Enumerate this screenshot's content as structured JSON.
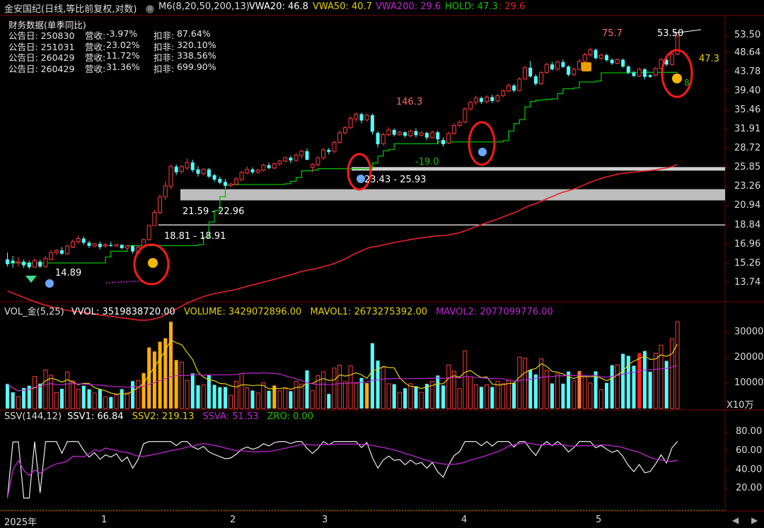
{
  "header": {
    "stock_title": "金安国纪(日线,等比前复权,对数)",
    "indicator_name": "M6(8,20,50,200,13)",
    "vwa20": "VWA20: 46.8",
    "vwa50": "VWA50: 40.7",
    "vwa200": "VWA200: 29.6",
    "hold_a": "HOLD: 47.3",
    "hold_b": ": 29.6"
  },
  "financials": {
    "title": "财务数据(单季同比)",
    "rows": [
      {
        "date": "公告日: 250830",
        "rev_label": "营收:",
        "rev": "-3.97%",
        "np_label": "扣非:",
        "np": "87.64%"
      },
      {
        "date": "公告日: 251031",
        "rev_label": "营收:",
        "rev": "23.02%",
        "np_label": "扣非:",
        "np": "320.10%"
      },
      {
        "date": "公告日: 260429",
        "rev_label": "营收:",
        "rev": "11.72%",
        "np_label": "扣非:",
        "np": "338.56%"
      },
      {
        "date": "公告日: 260429",
        "rev_label": "营收:",
        "rev": "31.36%",
        "np_label": "扣非:",
        "np": "699.90%"
      }
    ]
  },
  "price_axis": [
    "53.50",
    "48.64",
    "43.78",
    "39.40",
    "35.46",
    "31.91",
    "28.72",
    "25.85",
    "23.26",
    "20.94",
    "18.84",
    "16.96",
    "15.26",
    "13.74"
  ],
  "annotations": {
    "p1489": "14.89",
    "range1": "18.81 - 18.91",
    "range2": "21.59 - 22.96",
    "range3": "23.43 - 25.93",
    "p1463": "146.3",
    "p190": "-19.0",
    "p757": "75.7",
    "p5350": "53.50",
    "p473": "47.3",
    "p8": "8"
  },
  "volume": {
    "header_name": "VOL_金(5,25)",
    "vvol": "VVOL: 3519838720.00",
    "volume": "VOLUME: 3429072896.00",
    "mavol1": "MAVOL1: 2673275392.00",
    "mavol2": "MAVOL2: 2077099776.00",
    "axis": [
      "30000",
      "20000",
      "10000"
    ],
    "unit": "X10万"
  },
  "ssv": {
    "header_name": "SSV(144,12)",
    "ssv1": "SSV1: 66.84",
    "ssv2": "SSV2: 219.13",
    "ssva": "SSVA: 51.53",
    "zro": "ZRO: 0.00",
    "axis": [
      "80.00",
      "60.00",
      "40.00",
      "20.00"
    ]
  },
  "time_axis": [
    "2025年",
    "1",
    "2",
    "3",
    "4",
    "5"
  ],
  "colors": {
    "up": "#ff3b3b",
    "down": "#54ffff",
    "ma_green": "#00c000",
    "ma_red": "#e8202a",
    "vwa50": "#e6d200",
    "vwa200": "#c026d3",
    "hold": "#21c000",
    "grid": "#7a0000"
  },
  "chart_data": {
    "type": "candlestick",
    "scale": "log",
    "ylim": [
      13.2,
      55.0
    ],
    "candles": [
      [
        0,
        15.6,
        16.2,
        15.2,
        15.0
      ],
      [
        0,
        15.5,
        15.9,
        15.3,
        14.9
      ],
      [
        1,
        15.3,
        15.8,
        15.4,
        15.0
      ],
      [
        0,
        15.4,
        15.6,
        15.1,
        14.9
      ],
      [
        0,
        15.3,
        15.5,
        14.95,
        14.8
      ],
      [
        1,
        14.95,
        15.7,
        15.5,
        14.9
      ],
      [
        0,
        15.4,
        15.6,
        15.0,
        14.9
      ],
      [
        1,
        15.0,
        15.9,
        15.7,
        14.9
      ],
      [
        1,
        15.6,
        16.4,
        16.2,
        15.5
      ],
      [
        1,
        16.2,
        16.5,
        16.4,
        16.0
      ],
      [
        0,
        16.4,
        16.7,
        16.1,
        16.0
      ],
      [
        1,
        16.1,
        16.9,
        16.8,
        16.0
      ],
      [
        1,
        16.7,
        17.4,
        17.2,
        16.6
      ],
      [
        1,
        17.2,
        17.8,
        17.5,
        17.0
      ],
      [
        0,
        17.5,
        17.7,
        17.1,
        16.9
      ],
      [
        0,
        17.1,
        17.3,
        16.8,
        16.6
      ],
      [
        1,
        16.8,
        17.1,
        17.0,
        16.7
      ],
      [
        0,
        17.0,
        17.2,
        16.7,
        16.5
      ],
      [
        1,
        16.8,
        17.1,
        16.9,
        16.6
      ],
      [
        0,
        16.9,
        17.2,
        16.8,
        16.7
      ],
      [
        1,
        16.8,
        17.0,
        16.95,
        16.7
      ],
      [
        0,
        16.9,
        17.0,
        16.6,
        16.5
      ],
      [
        1,
        16.6,
        16.9,
        16.8,
        16.5
      ],
      [
        0,
        16.8,
        16.9,
        16.3,
        16.1
      ],
      [
        1,
        16.2,
        16.8,
        16.7,
        16.0
      ],
      [
        1,
        16.7,
        17.5,
        17.4,
        16.6
      ],
      [
        1,
        17.4,
        18.9,
        18.8,
        17.3
      ],
      [
        1,
        18.8,
        20.5,
        20.2,
        18.8
      ],
      [
        1,
        20.2,
        22.3,
        22.0,
        20.0
      ],
      [
        1,
        22.0,
        24.0,
        23.4,
        21.6
      ],
      [
        1,
        23.3,
        26.3,
        26.0,
        23.0
      ],
      [
        0,
        26.0,
        26.3,
        25.2,
        24.8
      ],
      [
        1,
        25.3,
        26.3,
        26.0,
        25.0
      ],
      [
        1,
        25.8,
        27.2,
        26.6,
        25.5
      ],
      [
        0,
        26.6,
        27.0,
        25.5,
        25.2
      ],
      [
        0,
        25.6,
        26.1,
        25.0,
        24.6
      ],
      [
        1,
        25.0,
        25.8,
        25.6,
        24.8
      ],
      [
        0,
        25.6,
        25.8,
        24.6,
        24.4
      ],
      [
        0,
        24.8,
        25.0,
        24.2,
        23.9
      ],
      [
        0,
        24.3,
        24.6,
        23.8,
        23.6
      ],
      [
        0,
        23.9,
        24.3,
        23.4,
        23.1
      ],
      [
        1,
        23.4,
        23.8,
        23.6,
        23.2
      ],
      [
        1,
        23.6,
        24.5,
        24.3,
        23.5
      ],
      [
        1,
        24.2,
        25.4,
        25.2,
        24.0
      ],
      [
        1,
        25.1,
        26.0,
        25.6,
        24.9
      ],
      [
        0,
        25.6,
        25.9,
        25.2,
        24.9
      ],
      [
        1,
        25.2,
        25.7,
        25.5,
        25.0
      ],
      [
        1,
        25.5,
        26.4,
        26.2,
        25.3
      ],
      [
        0,
        26.2,
        26.6,
        25.8,
        25.6
      ],
      [
        1,
        25.8,
        26.6,
        26.4,
        25.6
      ],
      [
        1,
        26.4,
        27.0,
        26.8,
        26.1
      ],
      [
        1,
        26.8,
        27.5,
        27.3,
        26.5
      ],
      [
        0,
        27.3,
        27.6,
        26.9,
        26.5
      ],
      [
        1,
        26.9,
        28.0,
        27.7,
        26.7
      ],
      [
        1,
        27.6,
        28.5,
        28.3,
        27.2
      ],
      [
        0,
        28.3,
        28.7,
        27.0,
        26.9
      ],
      [
        1,
        25.9,
        26.5,
        26.3,
        25.2
      ],
      [
        1,
        26.3,
        27.5,
        27.3,
        26.0
      ],
      [
        1,
        27.3,
        28.8,
        28.5,
        27.0
      ],
      [
        0,
        28.5,
        28.8,
        28.2,
        27.8
      ],
      [
        1,
        28.3,
        30.0,
        29.7,
        28.0
      ],
      [
        1,
        29.7,
        31.8,
        31.3,
        29.5
      ],
      [
        1,
        31.3,
        32.5,
        32.2,
        31.0
      ],
      [
        1,
        32.2,
        34.3,
        33.9,
        32.0
      ],
      [
        1,
        33.8,
        35.0,
        34.7,
        33.2
      ],
      [
        0,
        34.7,
        35.0,
        33.5,
        33.0
      ],
      [
        1,
        33.6,
        34.8,
        34.5,
        33.3
      ],
      [
        0,
        34.5,
        34.8,
        31.5,
        31.0
      ],
      [
        0,
        31.3,
        31.6,
        29.4,
        28.9
      ],
      [
        1,
        29.5,
        31.3,
        31.0,
        29.2
      ],
      [
        1,
        31.0,
        32.3,
        31.8,
        30.7
      ],
      [
        0,
        31.8,
        32.1,
        31.0,
        30.7
      ],
      [
        1,
        31.0,
        31.7,
        31.4,
        30.8
      ],
      [
        0,
        31.4,
        31.6,
        30.8,
        30.5
      ],
      [
        1,
        30.8,
        31.9,
        31.6,
        30.6
      ],
      [
        0,
        31.6,
        32.1,
        30.9,
        30.5
      ],
      [
        1,
        30.9,
        31.6,
        31.3,
        30.7
      ],
      [
        0,
        31.3,
        31.5,
        30.5,
        30.1
      ],
      [
        1,
        30.5,
        31.7,
        31.4,
        30.3
      ],
      [
        0,
        31.4,
        31.7,
        30.2,
        29.4
      ],
      [
        0,
        30.1,
        30.5,
        29.4,
        29.0
      ],
      [
        1,
        29.6,
        31.5,
        31.2,
        29.4
      ],
      [
        1,
        31.2,
        33.0,
        32.6,
        31.0
      ],
      [
        1,
        32.6,
        33.5,
        33.2,
        32.3
      ],
      [
        1,
        33.2,
        36.0,
        35.7,
        33.0
      ],
      [
        1,
        35.7,
        37.4,
        37.0,
        35.4
      ],
      [
        1,
        37.0,
        38.4,
        37.9,
        36.5
      ],
      [
        0,
        37.9,
        38.2,
        37.1,
        36.7
      ],
      [
        1,
        37.2,
        38.5,
        38.1,
        36.8
      ],
      [
        0,
        38.1,
        38.6,
        37.3,
        36.9
      ],
      [
        1,
        37.3,
        38.8,
        38.4,
        37.0
      ],
      [
        1,
        38.4,
        39.8,
        39.4,
        38.1
      ],
      [
        1,
        39.4,
        41.0,
        40.6,
        39.2
      ],
      [
        0,
        40.6,
        41.0,
        39.5,
        39.1
      ],
      [
        1,
        39.5,
        42.5,
        42.1,
        39.3
      ],
      [
        1,
        42.1,
        45.2,
        44.8,
        42.0
      ],
      [
        0,
        44.8,
        46.5,
        42.7,
        42.4
      ],
      [
        0,
        42.7,
        43.2,
        41.0,
        40.6
      ],
      [
        1,
        41.0,
        44.0,
        43.6,
        40.8
      ],
      [
        1,
        43.6,
        46.0,
        45.6,
        43.3
      ],
      [
        0,
        45.6,
        46.3,
        44.4,
        44.1
      ],
      [
        1,
        44.4,
        46.6,
        46.2,
        44.1
      ],
      [
        0,
        46.2,
        46.9,
        45.0,
        44.7
      ],
      [
        0,
        45.1,
        45.4,
        43.1,
        42.7
      ],
      [
        1,
        43.1,
        44.8,
        44.4,
        42.8
      ],
      [
        1,
        44.4,
        46.9,
        46.4,
        44.1
      ],
      [
        1,
        46.4,
        48.6,
        48.1,
        46.0
      ],
      [
        1,
        48.1,
        50.0,
        49.4,
        47.6
      ],
      [
        0,
        49.4,
        49.8,
        47.2,
        46.8
      ],
      [
        1,
        47.2,
        48.4,
        48.0,
        46.8
      ],
      [
        0,
        48.0,
        48.3,
        46.7,
        46.3
      ],
      [
        0,
        46.8,
        47.1,
        45.9,
        45.5
      ],
      [
        1,
        45.9,
        47.2,
        46.8,
        45.7
      ],
      [
        0,
        46.8,
        47.1,
        45.1,
        44.7
      ],
      [
        0,
        45.1,
        45.4,
        43.6,
        43.2
      ],
      [
        0,
        43.6,
        44.0,
        42.8,
        42.5
      ],
      [
        1,
        42.8,
        44.7,
        44.4,
        42.6
      ],
      [
        0,
        44.4,
        44.7,
        42.6,
        42.0
      ],
      [
        0,
        42.6,
        43.3,
        43.0,
        42.3
      ],
      [
        1,
        43.0,
        45.0,
        44.6,
        42.7
      ],
      [
        1,
        44.6,
        47.2,
        46.8,
        44.4
      ],
      [
        0,
        46.8,
        47.5,
        45.6,
        45.2
      ],
      [
        1,
        45.6,
        48.7,
        48.3,
        45.3
      ],
      [
        1,
        48.3,
        53.5,
        53.3,
        48.0
      ]
    ],
    "series": [
      {
        "name": "HOLD",
        "color": "#21c000"
      },
      {
        "name": "VWA200",
        "color": "#e8202a"
      },
      {
        "name": "VOLUME"
      },
      {
        "name": "MAVOL1",
        "color": "#e6d200"
      },
      {
        "name": "MAVOL2",
        "color": "#c026d3"
      },
      {
        "name": "SSV1",
        "color": "#ffffff"
      },
      {
        "name": "SSVA",
        "color": "#c026d3"
      }
    ]
  }
}
